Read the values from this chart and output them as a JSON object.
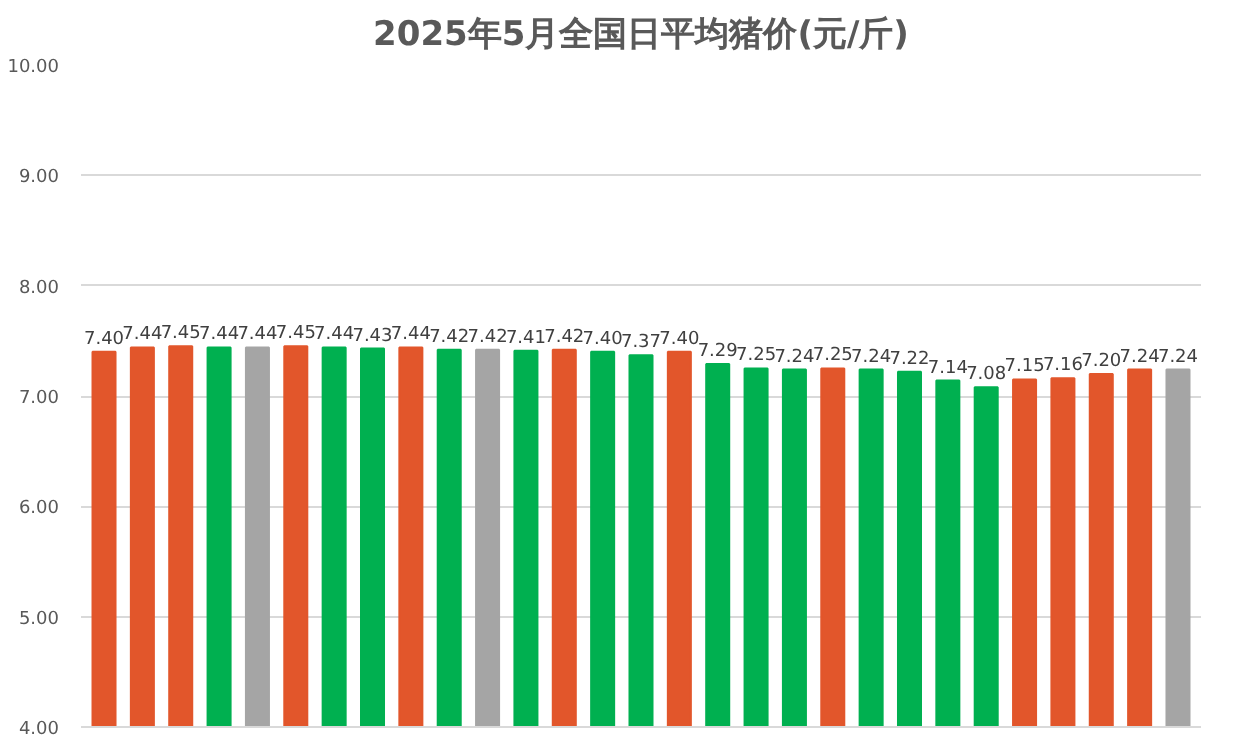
{
  "chart_data": {
    "type": "bar",
    "title": "2025年5月全国日平均猪价(元/斤)",
    "categories": [
      null,
      null,
      null,
      null,
      null,
      null,
      null,
      null,
      null,
      null,
      null,
      null,
      null,
      null,
      null,
      null,
      null,
      null,
      null,
      null,
      null,
      null,
      null,
      null,
      null,
      null,
      null,
      null,
      null
    ],
    "values": [
      7.4,
      7.44,
      7.45,
      7.44,
      7.44,
      7.45,
      7.44,
      7.43,
      7.44,
      7.42,
      7.42,
      7.41,
      7.42,
      7.4,
      7.37,
      7.4,
      7.29,
      7.25,
      7.24,
      7.25,
      7.24,
      7.22,
      7.14,
      7.08,
      7.15,
      7.16,
      7.2,
      7.24,
      7.24
    ],
    "colors": [
      "#e2562b",
      "#e2562b",
      "#e2562b",
      "#00b050",
      "#a5a5a5",
      "#e2562b",
      "#00b050",
      "#00b050",
      "#e2562b",
      "#00b050",
      "#a5a5a5",
      "#00b050",
      "#e2562b",
      "#00b050",
      "#00b050",
      "#e2562b",
      "#00b050",
      "#00b050",
      "#00b050",
      "#e2562b",
      "#00b050",
      "#00b050",
      "#00b050",
      "#00b050",
      "#e2562b",
      "#e2562b",
      "#e2562b",
      "#e2562b",
      "#a5a5a5"
    ],
    "ylim": [
      4,
      10
    ],
    "yticks": [
      {
        "value": 4,
        "label": "4.00"
      },
      {
        "value": 5,
        "label": "5.00"
      },
      {
        "value": 6,
        "label": "6.00"
      },
      {
        "value": 7,
        "label": "7.00"
      },
      {
        "value": 8,
        "label": "8.00"
      },
      {
        "value": 9,
        "label": "9.00"
      },
      {
        "value": 10,
        "label": "10.00"
      }
    ],
    "value_labels": [
      "7.40",
      "7.44",
      "7.45",
      "7.44",
      "7.44",
      "7.45",
      "7.44",
      "7.43",
      "7.44",
      "7.42",
      "7.42",
      "7.41",
      "7.42",
      "7.40",
      "7.37",
      "7.40",
      "7.29",
      "7.25",
      "7.24",
      "7.25",
      "7.24",
      "7.22",
      "7.14",
      "7.08",
      "7.15",
      "7.16",
      "7.20",
      "7.24",
      "7.24"
    ],
    "grid": "y"
  }
}
